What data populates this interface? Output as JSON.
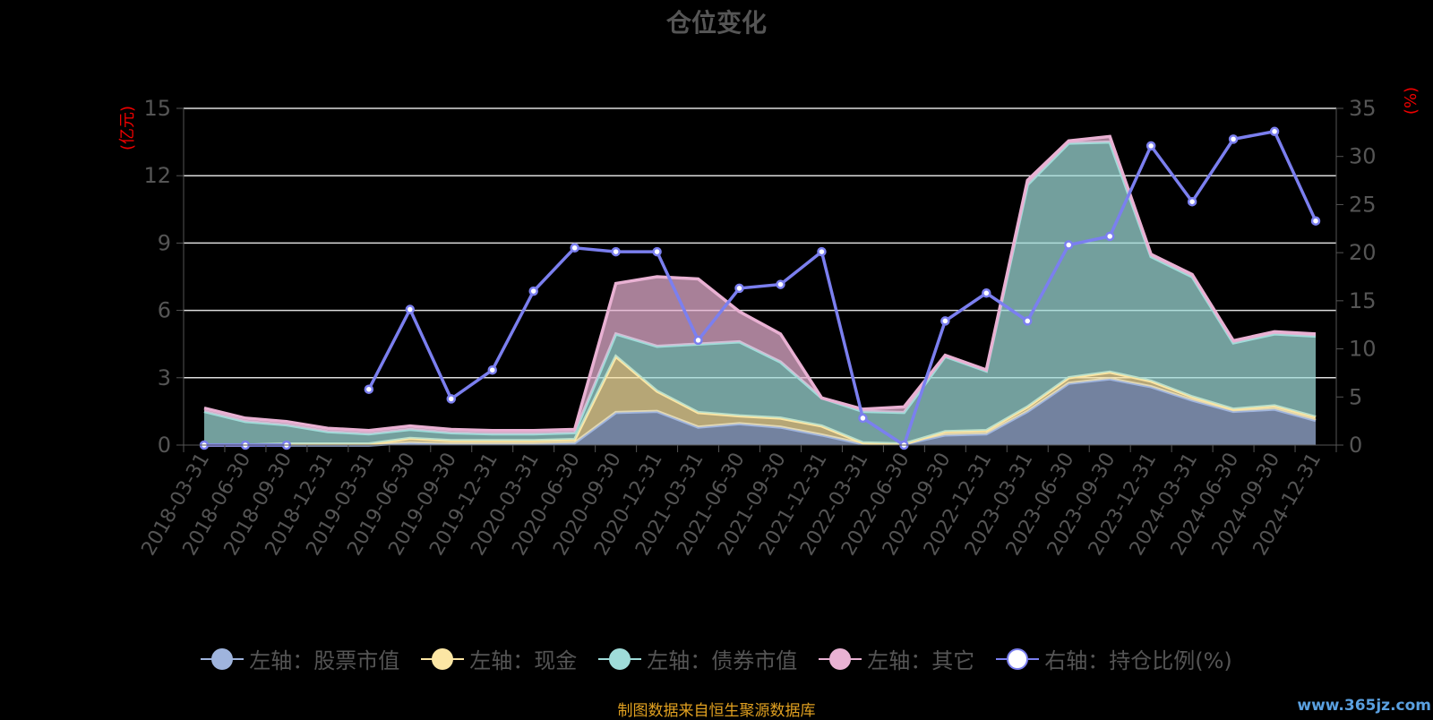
{
  "chart_data": {
    "type": "area",
    "title": "仓位变化",
    "y_left_label": "(亿元)",
    "y_right_label": "(%)",
    "y_left_ticks": [
      "0",
      "3",
      "6",
      "9",
      "12",
      "15"
    ],
    "y_right_ticks": [
      "0",
      "5",
      "10",
      "15",
      "20",
      "25",
      "30",
      "35"
    ],
    "ylim_left": [
      0,
      15
    ],
    "ylim_right": [
      0,
      35
    ],
    "grid": true,
    "legend_position": "bottom",
    "x": [
      "2018-03-31",
      "2018-06-30",
      "2018-09-30",
      "2018-12-31",
      "2019-03-31",
      "2019-06-30",
      "2019-09-30",
      "2019-12-31",
      "2020-03-31",
      "2020-06-30",
      "2020-09-30",
      "2020-12-31",
      "2021-03-31",
      "2021-06-30",
      "2021-09-30",
      "2021-12-31",
      "2022-03-31",
      "2022-06-30",
      "2022-09-30",
      "2022-12-31",
      "2023-03-31",
      "2023-06-30",
      "2023-09-30",
      "2023-12-31",
      "2024-03-31",
      "2024-06-30",
      "2024-09-30",
      "2024-12-31"
    ],
    "stacked": true,
    "series": [
      {
        "name": "左轴：股票市值",
        "axis": "left",
        "color": "#9fb4dd",
        "values": [
          0,
          0,
          0,
          0,
          0,
          0.1,
          0.05,
          0.05,
          0.05,
          0.1,
          1.45,
          1.5,
          0.8,
          0.95,
          0.8,
          0.45,
          0.05,
          0.05,
          0.45,
          0.5,
          1.5,
          2.75,
          2.95,
          2.6,
          2.0,
          1.5,
          1.6,
          1.1
        ]
      },
      {
        "name": "左轴：现金",
        "axis": "left",
        "color": "#fce6a4",
        "values": [
          0,
          0,
          0.05,
          0.05,
          0.05,
          0.2,
          0.15,
          0.15,
          0.15,
          0.15,
          2.5,
          0.9,
          0.65,
          0.35,
          0.4,
          0.4,
          0.05,
          0,
          0.15,
          0.15,
          0.2,
          0.25,
          0.3,
          0.25,
          0.15,
          0.1,
          0.15,
          0.15
        ]
      },
      {
        "name": "左轴：债券市值",
        "axis": "left",
        "color": "#9fdcd9",
        "values": [
          1.5,
          1.05,
          0.85,
          0.55,
          0.45,
          0.4,
          0.35,
          0.3,
          0.3,
          0.3,
          1.0,
          2.0,
          3.05,
          3.3,
          2.5,
          1.25,
          1.4,
          1.4,
          3.35,
          2.65,
          9.9,
          10.45,
          10.25,
          5.55,
          5.35,
          2.95,
          3.2,
          3.6
        ]
      },
      {
        "name": "左轴：其它",
        "axis": "left",
        "color": "#e9b1d3",
        "values": [
          0.15,
          0.15,
          0.15,
          0.15,
          0.15,
          0.15,
          0.15,
          0.15,
          0.15,
          0.15,
          2.25,
          3.1,
          2.9,
          1.35,
          1.25,
          0,
          0.1,
          0.25,
          0.05,
          0.05,
          0.2,
          0.1,
          0.25,
          0.1,
          0.1,
          0.1,
          0.1,
          0.1
        ]
      },
      {
        "name": "右轴：持仓比例(%)",
        "axis": "right",
        "color": "#7b7fef",
        "values": [
          0,
          0,
          0,
          null,
          5.8,
          14.1,
          4.8,
          7.8,
          16,
          20.5,
          20.1,
          20.1,
          10.9,
          16.3,
          16.7,
          20.1,
          2.8,
          0,
          12.9,
          15.8,
          12.9,
          20.8,
          21.7,
          31.1,
          25.3,
          31.8,
          32.6,
          23.3
        ]
      }
    ]
  },
  "source_note": "制图数据来自恒生聚源数据库",
  "watermark": "www.365jz.com"
}
